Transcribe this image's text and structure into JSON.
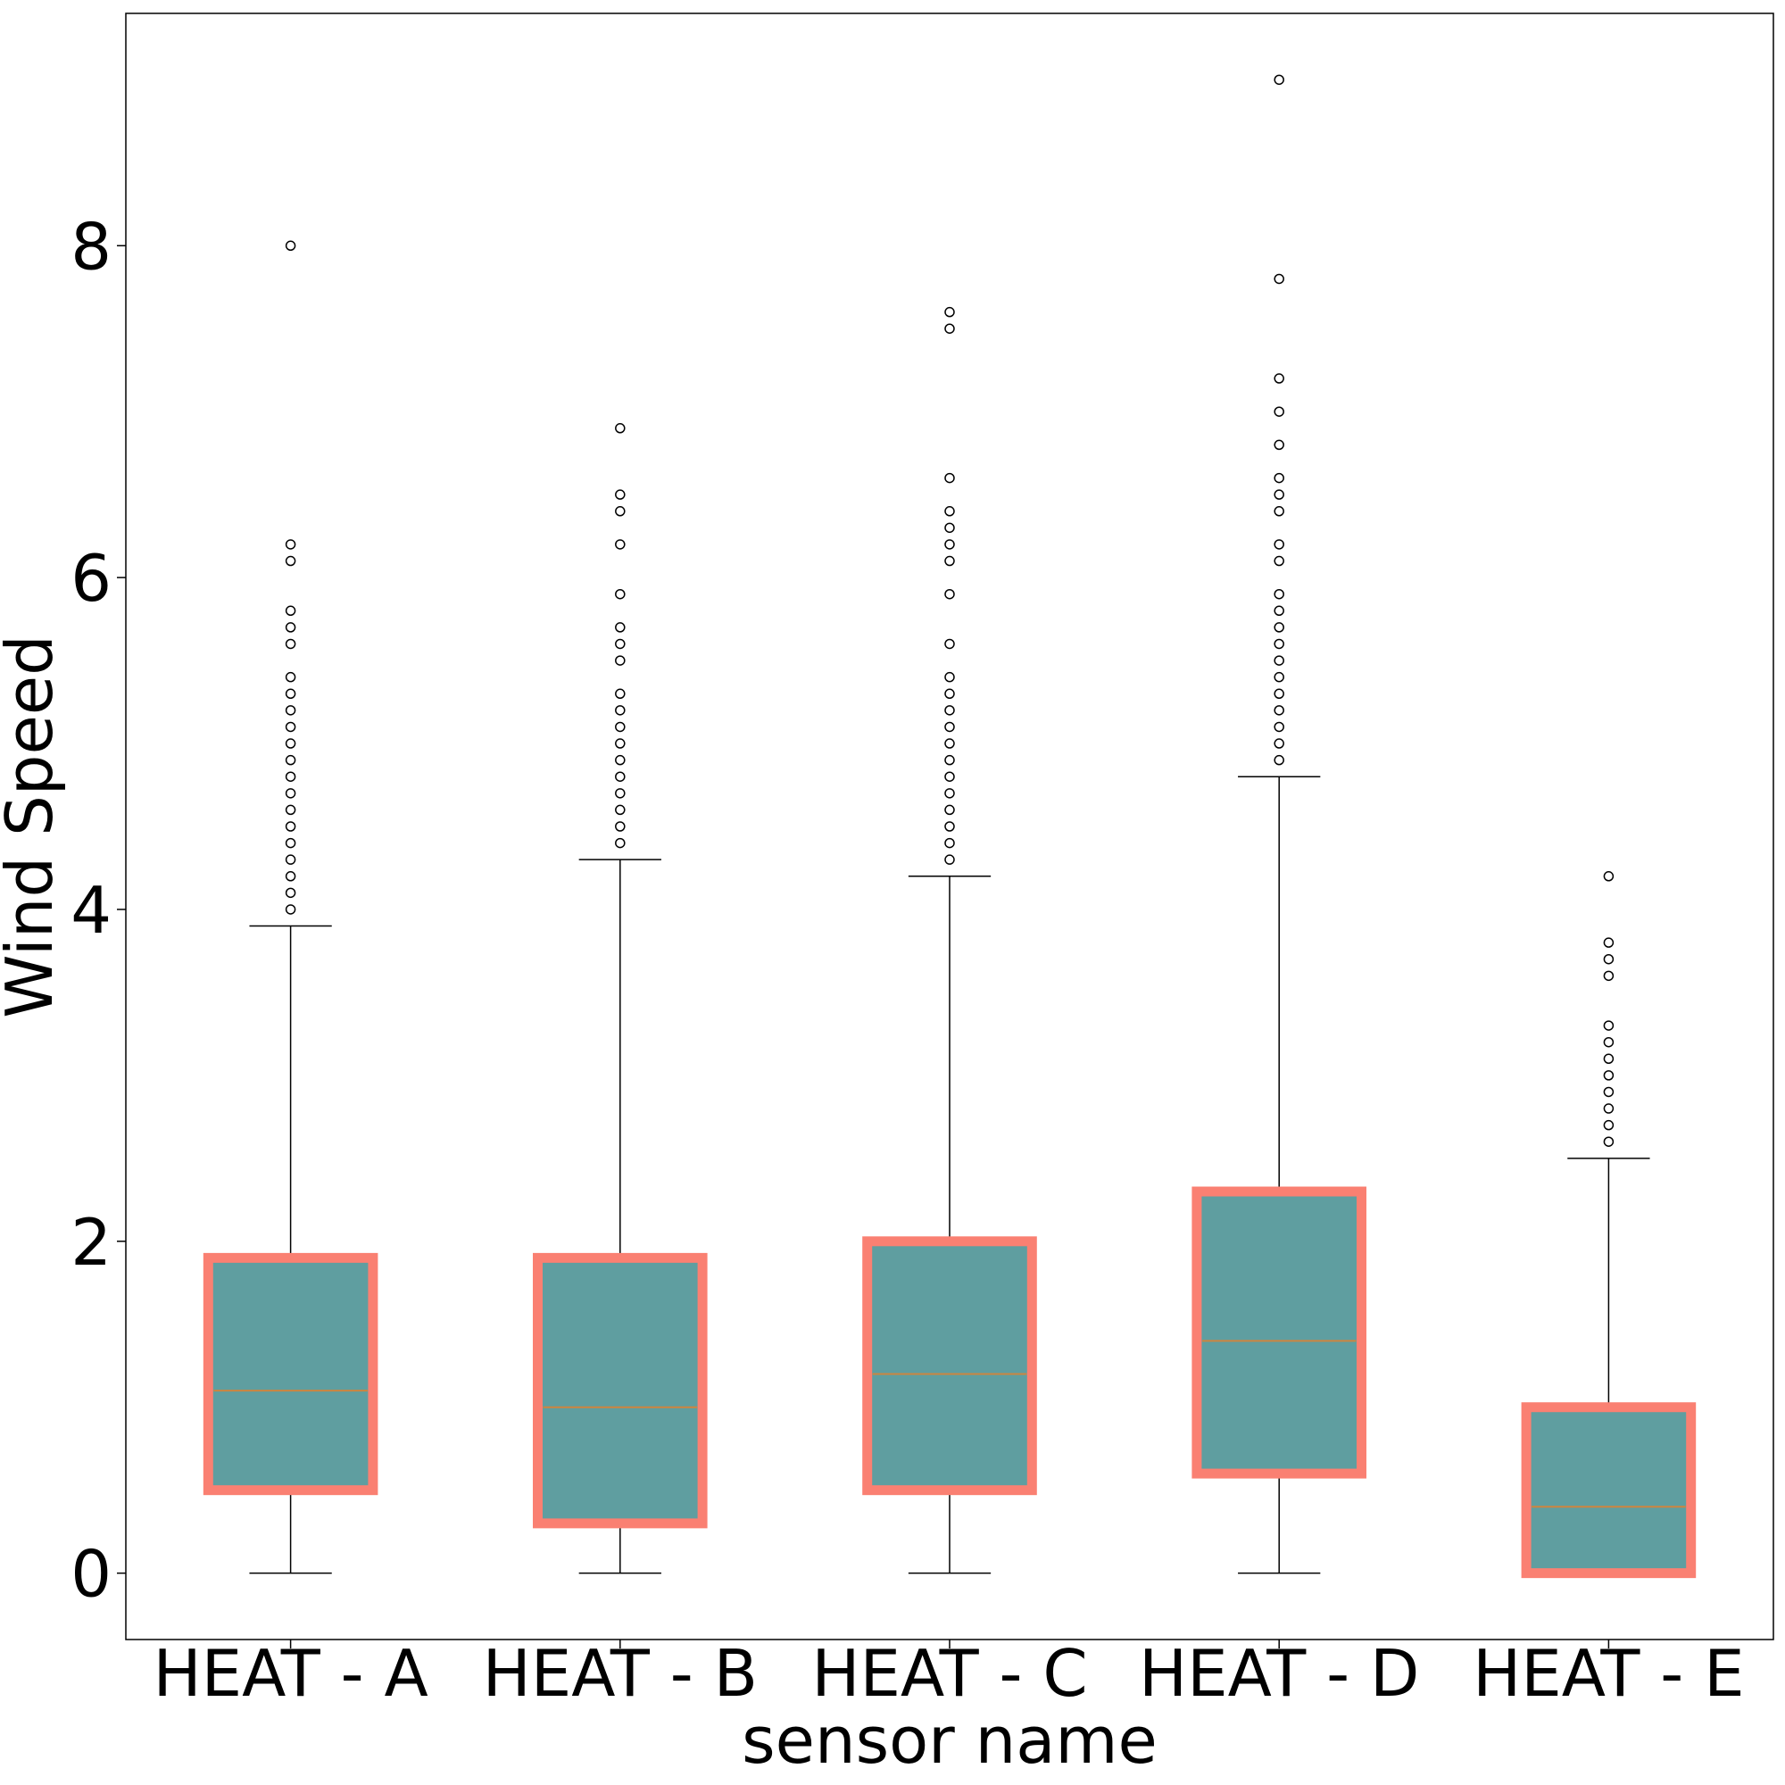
{
  "chart_data": {
    "type": "box",
    "xlabel": "sensor name",
    "ylabel": "Wind Speed",
    "ylim": [
      -0.4,
      9.4
    ],
    "yticks": [
      0,
      2,
      4,
      6,
      8
    ],
    "grid": false,
    "colors": {
      "box_fill": "#5f9ea0",
      "box_edge": "#fa8072",
      "median": "#cd853f",
      "whisker": "#000000",
      "flier_edge": "#000000"
    },
    "categories": [
      "HEAT - A",
      "HEAT - B",
      "HEAT - C",
      "HEAT - D",
      "HEAT - E"
    ],
    "boxes": [
      {
        "name": "HEAT - A",
        "whislo": 0.0,
        "q1": 0.5,
        "med": 1.1,
        "q3": 1.9,
        "whishi": 3.9,
        "fliers": [
          8.0,
          6.2,
          6.1,
          5.8,
          5.7,
          5.6,
          5.4,
          5.3,
          5.2,
          5.1,
          5.0,
          4.9,
          4.8,
          4.7,
          4.6,
          4.5,
          4.4,
          4.3,
          4.2,
          4.1,
          4.0
        ]
      },
      {
        "name": "HEAT - B",
        "whislo": 0.0,
        "q1": 0.3,
        "med": 1.0,
        "q3": 1.9,
        "whishi": 4.3,
        "fliers": [
          6.9,
          6.5,
          6.4,
          6.2,
          5.9,
          5.7,
          5.6,
          5.5,
          5.3,
          5.2,
          5.1,
          5.0,
          4.9,
          4.8,
          4.7,
          4.6,
          4.5,
          4.4
        ]
      },
      {
        "name": "HEAT - C",
        "whislo": 0.0,
        "q1": 0.5,
        "med": 1.2,
        "q3": 2.0,
        "whishi": 4.2,
        "fliers": [
          7.6,
          7.5,
          6.6,
          6.4,
          6.3,
          6.2,
          6.1,
          5.9,
          5.6,
          5.4,
          5.3,
          5.2,
          5.1,
          5.0,
          4.9,
          4.8,
          4.7,
          4.6,
          4.5,
          4.4,
          4.3
        ]
      },
      {
        "name": "HEAT - D",
        "whislo": 0.0,
        "q1": 0.6,
        "med": 1.4,
        "q3": 2.3,
        "whishi": 4.8,
        "fliers": [
          9.0,
          7.8,
          7.2,
          7.0,
          6.8,
          6.6,
          6.5,
          6.4,
          6.2,
          6.1,
          5.9,
          5.8,
          5.7,
          5.6,
          5.5,
          5.4,
          5.3,
          5.2,
          5.1,
          5.0,
          4.9
        ]
      },
      {
        "name": "HEAT - E",
        "whislo": 0.0,
        "q1": 0.0,
        "med": 0.4,
        "q3": 1.0,
        "whishi": 2.5,
        "fliers": [
          4.2,
          3.8,
          3.7,
          3.6,
          3.3,
          3.2,
          3.1,
          3.0,
          2.9,
          2.8,
          2.7,
          2.6
        ]
      }
    ]
  }
}
